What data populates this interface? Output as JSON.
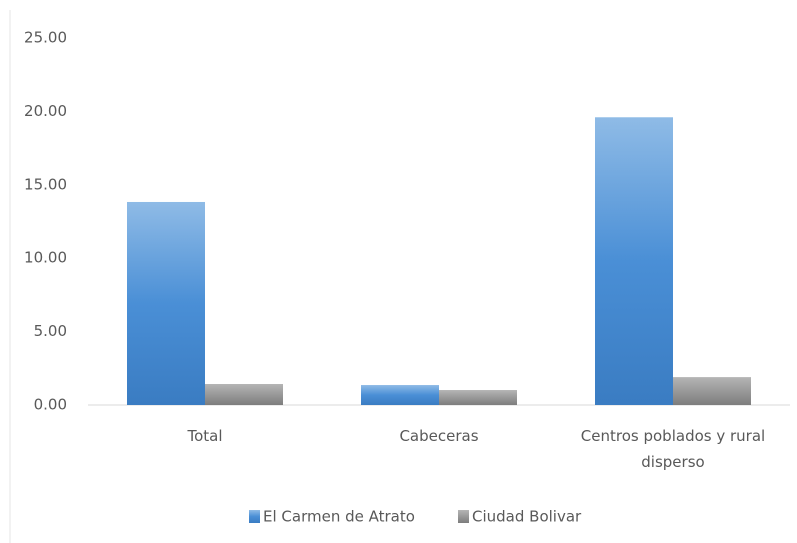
{
  "chart_data": {
    "type": "bar",
    "categories": [
      "Total",
      "Cabeceras",
      "Centros poblados y rural disperso"
    ],
    "series": [
      {
        "name": "El Carmen de Atrato",
        "color": "#4a8fd6",
        "values": [
          13.83,
          1.36,
          19.6
        ]
      },
      {
        "name": "Ciudad Bolivar",
        "color": "#8c8c8c",
        "values": [
          1.43,
          1.02,
          1.9
        ]
      }
    ],
    "ylim": [
      0,
      25
    ],
    "yticks": [
      {
        "value": 0,
        "label": "0.00"
      },
      {
        "value": 5,
        "label": "5.00"
      },
      {
        "value": 10,
        "label": "10.00"
      },
      {
        "value": 15,
        "label": "15.00"
      },
      {
        "value": 20,
        "label": "20.00"
      },
      {
        "value": 25,
        "label": "25.00"
      }
    ],
    "grid": false,
    "legend": "bottom"
  }
}
